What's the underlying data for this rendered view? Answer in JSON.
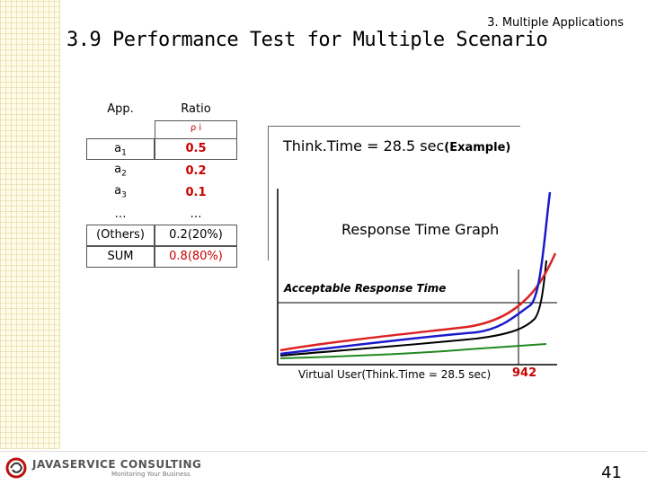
{
  "section_label": "3. Multiple Applications",
  "title": "3.9 Performance Test for Multiple Scenario",
  "table": {
    "headers": [
      "App.",
      "Ratio"
    ],
    "rho_symbol": "ρ i",
    "rows": [
      {
        "app": "a1",
        "ratio": "0.5"
      },
      {
        "app": "a2",
        "ratio": "0.2"
      },
      {
        "app": "a3",
        "ratio": "0.1"
      },
      {
        "app": "…",
        "ratio": "…"
      },
      {
        "app": "(Others)",
        "ratio": "0.2(20%)"
      },
      {
        "app": "SUM",
        "ratio": "0.8(80%)"
      }
    ]
  },
  "think_time": {
    "text": "Think.Time = 28.5 sec",
    "example": "(Example)"
  },
  "graph": {
    "title": "Response Time Graph",
    "threshold_label": "Acceptable Response Time",
    "x_label": "Virtual User(Think.Time = 28.5 sec)",
    "x_marker": "942",
    "colors": {
      "blue": "#1a1acc",
      "red": "#dd2222",
      "black": "#000000",
      "green": "#228822"
    }
  },
  "footer": {
    "logo_text": "JAVASERVICE CONSULTING",
    "logo_sub": "Monitoring Your Business",
    "page": "41"
  }
}
